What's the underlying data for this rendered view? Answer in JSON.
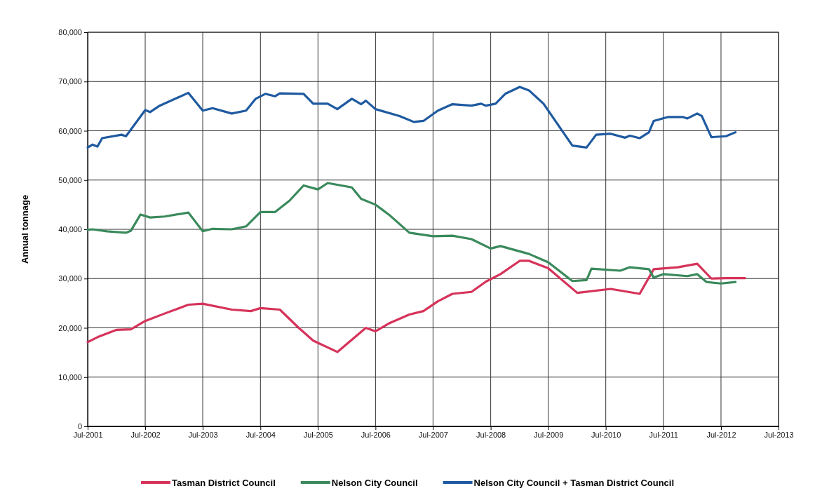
{
  "chart_data": {
    "type": "line",
    "ylabel": "Annual tonnage",
    "xlim": [
      "2001-07",
      "2013-07"
    ],
    "ylim": [
      0,
      80000
    ],
    "xticks": [
      {
        "value": "2001-07",
        "label": "Jul-2001"
      },
      {
        "value": "2002-07",
        "label": "Jul-2002"
      },
      {
        "value": "2003-07",
        "label": "Jul-2003"
      },
      {
        "value": "2004-07",
        "label": "Jul-2004"
      },
      {
        "value": "2005-07",
        "label": "Jul-2005"
      },
      {
        "value": "2006-07",
        "label": "Jul-2006"
      },
      {
        "value": "2007-07",
        "label": "Jul-2007"
      },
      {
        "value": "2008-07",
        "label": "Jul-2008"
      },
      {
        "value": "2009-07",
        "label": "Jul-2009"
      },
      {
        "value": "2010-07",
        "label": "Jul-2010"
      },
      {
        "value": "2011-07",
        "label": "Jul-2011"
      },
      {
        "value": "2012-07",
        "label": "Jul-2012"
      },
      {
        "value": "2013-07",
        "label": "Jul-2013"
      }
    ],
    "yticks": [
      0,
      {
        "value": 10000,
        "label": "10,000"
      },
      {
        "value": 20000,
        "label": "20,000"
      },
      {
        "value": 30000,
        "label": "30,000"
      },
      {
        "value": 40000,
        "label": "40,000"
      },
      {
        "value": 50000,
        "label": "50,000"
      },
      {
        "value": 60000,
        "label": "60,000"
      },
      {
        "value": 70000,
        "label": "70,000"
      },
      {
        "value": 80000,
        "label": "80,000"
      }
    ],
    "grid": true,
    "legend": "bottom",
    "marker": "none",
    "line_style": "solid",
    "series": [
      {
        "name": "Tasman District Council",
        "color": "#d6335a",
        "x": [
          "2001-07",
          "2001-09",
          "2002-01",
          "2002-04",
          "2002-07",
          "2002-11",
          "2003-04",
          "2003-07",
          "2004-01",
          "2004-05",
          "2004-07",
          "2004-11",
          "2005-03",
          "2005-06",
          "2005-11",
          "2006-05",
          "2006-07",
          "2006-10",
          "2007-02",
          "2007-05",
          "2007-08",
          "2007-11",
          "2008-03",
          "2008-06",
          "2008-09",
          "2009-01",
          "2009-03",
          "2009-07",
          "2010-01",
          "2010-08",
          "2011-02",
          "2011-05",
          "2011-10",
          "2012-02",
          "2012-05",
          "2012-08",
          "2012-12"
        ],
        "values": [
          17100,
          18100,
          19600,
          19700,
          21400,
          22900,
          24700,
          24900,
          23700,
          23400,
          24000,
          23700,
          20000,
          17400,
          15100,
          20000,
          19300,
          21000,
          22700,
          23400,
          25400,
          26900,
          27300,
          29400,
          30900,
          33600,
          33600,
          32100,
          27100,
          27900,
          26900,
          31900,
          32300,
          33000,
          30000,
          30100,
          30100
        ]
      },
      {
        "name": "Nelson City Council",
        "color": "#3a8a5c",
        "x": [
          "2001-07",
          "2001-08",
          "2001-11",
          "2002-03",
          "2002-04",
          "2002-06",
          "2002-08",
          "2002-11",
          "2003-04",
          "2003-07",
          "2003-09",
          "2004-01",
          "2004-04",
          "2004-07",
          "2004-10",
          "2005-01",
          "2005-04",
          "2005-07",
          "2005-09",
          "2006-02",
          "2006-04",
          "2006-07",
          "2006-10",
          "2007-02",
          "2007-07",
          "2007-11",
          "2008-03",
          "2008-07",
          "2008-09",
          "2009-03",
          "2009-07",
          "2009-12",
          "2010-03",
          "2010-04",
          "2010-10",
          "2010-12",
          "2011-04",
          "2011-05",
          "2011-07",
          "2011-12",
          "2012-02",
          "2012-04",
          "2012-07",
          "2012-10"
        ],
        "values": [
          39900,
          40000,
          39600,
          39300,
          39700,
          43000,
          42400,
          42600,
          43400,
          39600,
          40100,
          40000,
          40600,
          43500,
          43500,
          45800,
          48900,
          48100,
          49400,
          48500,
          46200,
          45000,
          42800,
          39300,
          38600,
          38700,
          38000,
          36100,
          36600,
          35000,
          33300,
          29500,
          29700,
          32000,
          31600,
          32300,
          31900,
          30200,
          30900,
          30500,
          30900,
          29300,
          29000,
          29300
        ]
      },
      {
        "name": "Nelson City Council + Tasman District Council",
        "color": "#1f5aa0",
        "x": [
          "2001-07",
          "2001-08",
          "2001-09",
          "2001-10",
          "2002-02",
          "2002-03",
          "2002-07",
          "2002-08",
          "2002-10",
          "2003-04",
          "2003-07",
          "2003-09",
          "2004-01",
          "2004-04",
          "2004-06",
          "2004-08",
          "2004-10",
          "2004-11",
          "2005-04",
          "2005-06",
          "2005-09",
          "2005-11",
          "2006-02",
          "2006-04",
          "2006-05",
          "2006-07",
          "2006-12",
          "2007-03",
          "2007-05",
          "2007-08",
          "2007-11",
          "2008-03",
          "2008-05",
          "2008-06",
          "2008-08",
          "2008-10",
          "2009-01",
          "2009-03",
          "2009-06",
          "2009-12",
          "2010-03",
          "2010-05",
          "2010-08",
          "2010-11",
          "2010-12",
          "2011-02",
          "2011-04",
          "2011-05",
          "2011-08",
          "2011-11",
          "2011-12",
          "2012-02",
          "2012-03",
          "2012-05",
          "2012-08",
          "2012-10"
        ],
        "values": [
          56600,
          57200,
          56800,
          58500,
          59200,
          58900,
          64200,
          63800,
          65100,
          67700,
          64100,
          64600,
          63500,
          64100,
          66500,
          67500,
          67000,
          67600,
          67500,
          65500,
          65500,
          64400,
          66500,
          65400,
          66100,
          64400,
          63000,
          61800,
          62000,
          64100,
          65400,
          65100,
          65500,
          65100,
          65500,
          67500,
          68900,
          68200,
          65500,
          57000,
          56600,
          59200,
          59400,
          58600,
          59000,
          58500,
          59700,
          62000,
          62800,
          62800,
          62500,
          63500,
          63000,
          58700,
          58900,
          59700
        ]
      }
    ]
  }
}
